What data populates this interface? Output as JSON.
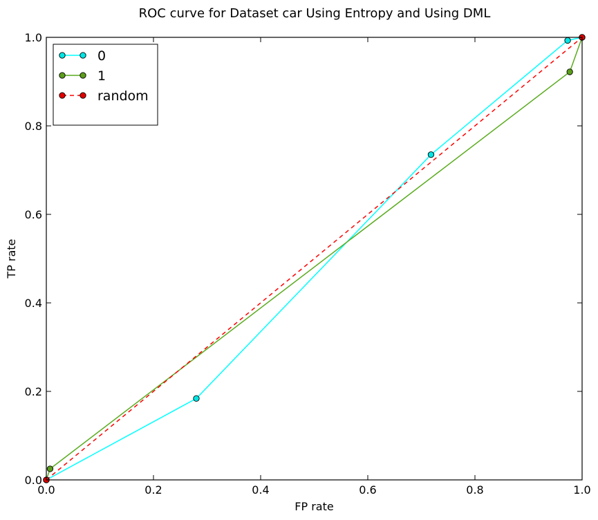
{
  "chart_data": {
    "type": "line",
    "title": "ROC curve for Dataset car Using Entropy and Using DML",
    "xlabel": "FP rate",
    "ylabel": "TP rate",
    "xlim": [
      0,
      1
    ],
    "ylim": [
      0,
      1
    ],
    "xticks": [
      "0.0",
      "0.2",
      "0.4",
      "0.6",
      "0.8",
      "1.0"
    ],
    "yticks": [
      "0.0",
      "0.2",
      "0.4",
      "0.6",
      "0.8",
      "1.0"
    ],
    "grid": false,
    "legend_position": "top-left",
    "series": [
      {
        "name": "0",
        "color": "#00ffff",
        "marker_color": "#00e5e5",
        "dash": false,
        "x": [
          0.0,
          0.28,
          0.718,
          0.973,
          1.0
        ],
        "y": [
          0.0,
          0.184,
          0.735,
          0.993,
          1.0
        ]
      },
      {
        "name": "1",
        "color": "#5aab1e",
        "marker_color": "#5c9e1c",
        "dash": false,
        "x": [
          0.0,
          0.007,
          0.977,
          1.0
        ],
        "y": [
          0.0,
          0.025,
          0.922,
          1.0
        ]
      },
      {
        "name": "random",
        "color": "#ff0000",
        "marker_color": "#e00000",
        "dash": true,
        "x": [
          0.0,
          1.0
        ],
        "y": [
          0.0,
          1.0
        ]
      }
    ]
  }
}
